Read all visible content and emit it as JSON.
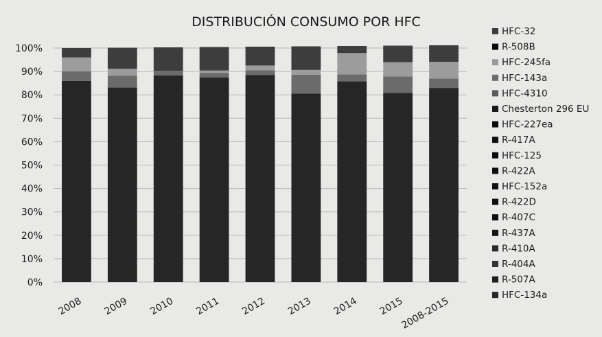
{
  "chart_data": {
    "type": "bar",
    "stacked": true,
    "normalized": true,
    "title": "DISTRIBUCIÓN CONSUMO POR HFC",
    "xlabel": "",
    "ylabel": "",
    "ylim": [
      0,
      100
    ],
    "yticks": [
      "0%",
      "10%",
      "20%",
      "30%",
      "40%",
      "50%",
      "60%",
      "70%",
      "80%",
      "90%",
      "100%"
    ],
    "categories": [
      "2008",
      "2009",
      "2010",
      "2011",
      "2012",
      "2013",
      "2014",
      "2015",
      "2008-2015"
    ],
    "legend_position": "right",
    "grid": true,
    "series": [
      {
        "name": "HFC-134a",
        "color": "#262626",
        "values": [
          86,
          83,
          88,
          87,
          88,
          80,
          85,
          80,
          82
        ]
      },
      {
        "name": "R-507A",
        "color": "#1d1d1d",
        "values": [
          0,
          0,
          0,
          0,
          0,
          0,
          0,
          0,
          0
        ]
      },
      {
        "name": "R-404A",
        "color": "#333333",
        "values": [
          0,
          0,
          0,
          0,
          0,
          0,
          0,
          0,
          0
        ]
      },
      {
        "name": "R-410A",
        "color": "#2a2a2a",
        "values": [
          0,
          0,
          0,
          0,
          0,
          0,
          0,
          0,
          0
        ]
      },
      {
        "name": "R-437A",
        "color": "#141414",
        "values": [
          0,
          0,
          0,
          0,
          0,
          0,
          0,
          0,
          0
        ]
      },
      {
        "name": "R-407C",
        "color": "#101010",
        "values": [
          0,
          0,
          0,
          0,
          0,
          0,
          0,
          0,
          0
        ]
      },
      {
        "name": "R-422D",
        "color": "#0d0d0d",
        "values": [
          0,
          0,
          0,
          0,
          0,
          0,
          0,
          0,
          0
        ]
      },
      {
        "name": "HFC-152a",
        "color": "#111111",
        "values": [
          0,
          0,
          0,
          0,
          0,
          0,
          0,
          0,
          0
        ]
      },
      {
        "name": "R-422A",
        "color": "#0e0e0e",
        "values": [
          0,
          0,
          0,
          0,
          0,
          0,
          0,
          0,
          0
        ]
      },
      {
        "name": "HFC-125",
        "color": "#0c0c0c",
        "values": [
          0,
          0,
          0,
          0,
          0,
          0,
          0,
          0,
          0
        ]
      },
      {
        "name": "R-417A",
        "color": "#0f0f0f",
        "values": [
          0,
          0,
          0,
          0,
          0,
          0,
          0,
          0,
          0
        ]
      },
      {
        "name": "HFC-227ea",
        "color": "#0b0b0b",
        "values": [
          0,
          0,
          0,
          0,
          0,
          0,
          0,
          0,
          0
        ]
      },
      {
        "name": "Chesterton 296 EU",
        "color": "#191919",
        "values": [
          0,
          0,
          0,
          0,
          0,
          0,
          0,
          0,
          0
        ]
      },
      {
        "name": "HFC-4310",
        "color": "#5a5a5a",
        "values": [
          0,
          0,
          0,
          0,
          0,
          0,
          0,
          0,
          0
        ]
      },
      {
        "name": "HFC-143a",
        "color": "#6b6b6b",
        "values": [
          4,
          5,
          2,
          2,
          2,
          8,
          3,
          7,
          4
        ]
      },
      {
        "name": "HFC-245fa",
        "color": "#9c9c9c",
        "values": [
          6,
          3,
          0,
          1,
          2,
          2,
          9,
          6,
          7
        ]
      },
      {
        "name": "R-508B",
        "color": "#0a0a0a",
        "values": [
          0,
          0,
          0,
          0,
          0,
          0,
          0,
          0,
          0
        ]
      },
      {
        "name": "HFC-32",
        "color": "#3d3d3d",
        "values": [
          4,
          9,
          10,
          10,
          8,
          10,
          3,
          7,
          7
        ]
      }
    ]
  }
}
